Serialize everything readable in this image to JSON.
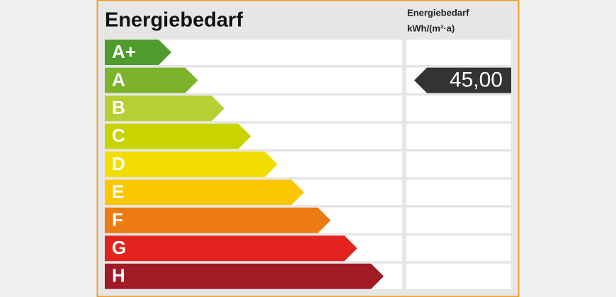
{
  "title": "Energiebedarf",
  "column_header": [
    "Energiebedarf",
    "kWh/(m²·a)"
  ],
  "classes": [
    {
      "label": "A+",
      "color": "#4f9b2b"
    },
    {
      "label": "A",
      "color": "#7db22b",
      "value": "45,00"
    },
    {
      "label": "B",
      "color": "#b7cf33"
    },
    {
      "label": "C",
      "color": "#c9d300"
    },
    {
      "label": "D",
      "color": "#f1de00"
    },
    {
      "label": "E",
      "color": "#fcc600"
    },
    {
      "label": "F",
      "color": "#ed7a12"
    },
    {
      "label": "G",
      "color": "#e2231f"
    },
    {
      "label": "H",
      "color": "#a11b24"
    }
  ]
}
